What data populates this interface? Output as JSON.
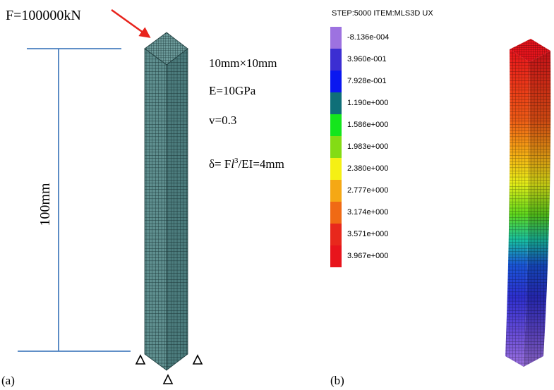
{
  "panel_a": {
    "force_label": "F=100000kN",
    "length_label": "100mm",
    "section_label": "10mm×10mm",
    "modulus_label": "E=10GPa",
    "poisson_label": "v=0.3",
    "deflection_prefix": "δ= F",
    "deflection_italic": "l",
    "deflection_sup": "3",
    "deflection_suffix": "/EI=4mm",
    "panel_label": "(a)",
    "force_arrow_color": "#e8231c",
    "dimension_line_color": "#4a7fbf",
    "mesh_color": "#2f6466",
    "support_icon": "triangle-support-icon"
  },
  "panel_b": {
    "legend_title": "STEP:5000 ITEM:MLS3D UX",
    "legend": [
      {
        "value": "-8.136e-004",
        "color": "#9d72e0"
      },
      {
        "value": "3.960e-001",
        "color": "#3c2ed2"
      },
      {
        "value": "7.928e-001",
        "color": "#0a17f0"
      },
      {
        "value": "1.190e+000",
        "color": "#0f6f78"
      },
      {
        "value": "1.586e+000",
        "color": "#14e61c"
      },
      {
        "value": "1.983e+000",
        "color": "#84dc14"
      },
      {
        "value": "2.380e+000",
        "color": "#f5f014"
      },
      {
        "value": "2.777e+000",
        "color": "#f5a814"
      },
      {
        "value": "3.174e+000",
        "color": "#f06a14"
      },
      {
        "value": "3.571e+000",
        "color": "#e8281c"
      },
      {
        "value": "3.967e+000",
        "color": "#e8141c"
      }
    ],
    "panel_label": "(b)"
  }
}
